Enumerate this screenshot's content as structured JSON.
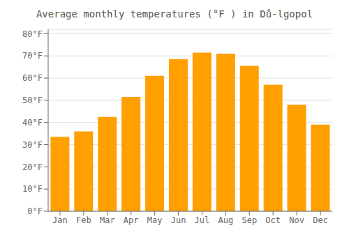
{
  "chart_data": {
    "type": "bar",
    "title": "Average monthly temperatures (°F ) in Dů-lgopol",
    "categories": [
      "Jan",
      "Feb",
      "Mar",
      "Apr",
      "May",
      "Jun",
      "Jul",
      "Aug",
      "Sep",
      "Oct",
      "Nov",
      "Dec"
    ],
    "values": [
      33.5,
      36.0,
      42.5,
      51.5,
      61.0,
      68.5,
      71.5,
      71.0,
      65.5,
      57.0,
      48.0,
      39.0
    ],
    "color": "#FFA000",
    "ylim": [
      0,
      82
    ],
    "yticks": [
      {
        "value": 0,
        "label": "0°F"
      },
      {
        "value": 10,
        "label": "10°F"
      },
      {
        "value": 20,
        "label": "20°F"
      },
      {
        "value": 30,
        "label": "30°F"
      },
      {
        "value": 40,
        "label": "40°F"
      },
      {
        "value": 50,
        "label": "50°F"
      },
      {
        "value": 60,
        "label": "60°F"
      },
      {
        "value": 70,
        "label": "70°F"
      },
      {
        "value": 80,
        "label": "80°F"
      }
    ],
    "grid": true
  }
}
